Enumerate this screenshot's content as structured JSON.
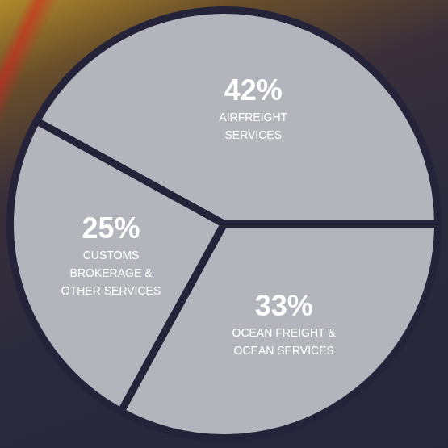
{
  "chart_data": {
    "type": "pie",
    "categories": [
      "AIRFREIGHT SERVICES",
      "OCEAN FREIGHT & OCEAN SERVICES",
      "CUSTOMS BROKERAGE & OTHER SERVICES"
    ],
    "values": [
      42,
      33,
      25
    ],
    "value_labels": [
      "42%",
      "33%",
      "25%"
    ],
    "color": "#b4b5bc",
    "data_labels": true
  }
}
